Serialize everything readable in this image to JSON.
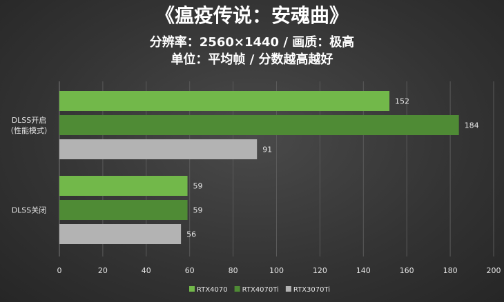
{
  "chart_data": {
    "type": "hbar",
    "title": "《瘟疫传说：安魂曲》",
    "subtitle": "分辨率：2560×1440 / 画质：极高",
    "note": "单位：平均帧 / 分数越高越好",
    "categories": [
      "DLSS开启\n（性能模式）",
      "DLSS关闭"
    ],
    "series": [
      {
        "name": "RTX4070",
        "color": "#72b84a",
        "values": [
          152,
          59
        ]
      },
      {
        "name": "RTX4070Ti",
        "color": "#4f8b35",
        "values": [
          184,
          59
        ]
      },
      {
        "name": "RTX3070Ti",
        "color": "#b3b3b3",
        "values": [
          91,
          56
        ]
      }
    ],
    "xlim": [
      0,
      200
    ],
    "xticks": [
      0,
      20,
      40,
      60,
      80,
      100,
      120,
      140,
      160,
      180,
      200
    ],
    "grid": true
  }
}
